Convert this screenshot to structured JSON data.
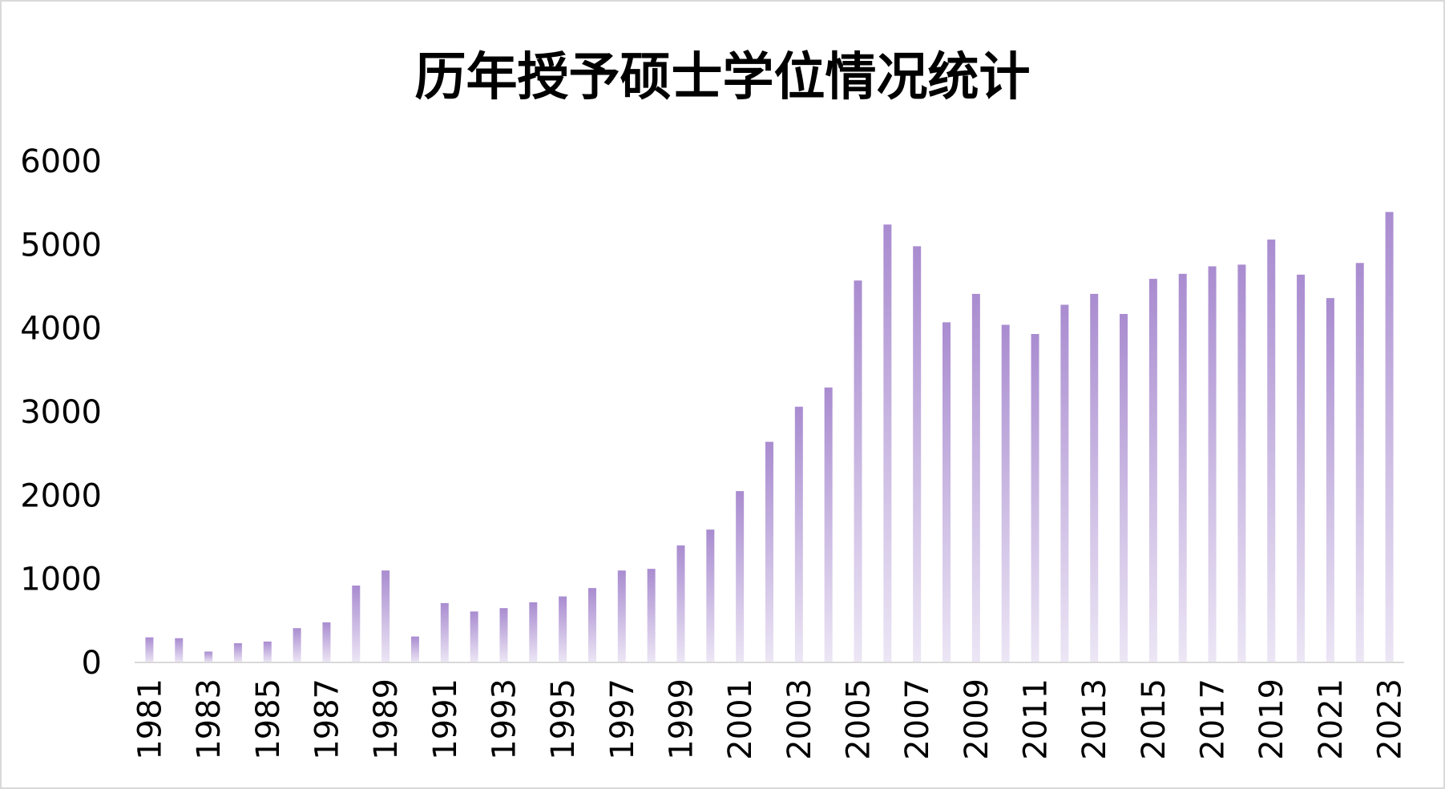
{
  "chart_data": {
    "type": "bar",
    "title": "历年授予硕士学位情况统计",
    "xlabel": "",
    "ylabel": "",
    "ylim": [
      0,
      6000
    ],
    "yticks": [
      "0",
      "1000",
      "2000",
      "3000",
      "4000",
      "5000",
      "6000"
    ],
    "xtick_labels": [
      "1981",
      "1983",
      "1985",
      "1987",
      "1989",
      "1991",
      "1993",
      "1995",
      "1997",
      "1999",
      "2001",
      "2003",
      "2005",
      "2007",
      "2009",
      "2011",
      "2013",
      "2015",
      "2017",
      "2019",
      "2021",
      "2023"
    ],
    "categories": [
      "1981",
      "1982",
      "1983",
      "1984",
      "1985",
      "1986",
      "1987",
      "1988",
      "1989",
      "1990",
      "1991",
      "1992",
      "1993",
      "1994",
      "1995",
      "1996",
      "1997",
      "1998",
      "1999",
      "2000",
      "2001",
      "2002",
      "2003",
      "2004",
      "2005",
      "2006",
      "2007",
      "2008",
      "2009",
      "2010",
      "2011",
      "2012",
      "2013",
      "2014",
      "2015",
      "2016",
      "2017",
      "2018",
      "2019",
      "2020",
      "2021",
      "2022",
      "2023"
    ],
    "values": [
      300,
      290,
      130,
      230,
      250,
      410,
      480,
      920,
      1100,
      310,
      710,
      610,
      650,
      720,
      790,
      890,
      1100,
      1120,
      1400,
      1590,
      2050,
      2640,
      3060,
      3290,
      4570,
      5240,
      4980,
      4070,
      4410,
      4040,
      3930,
      4280,
      4410,
      4170,
      4590,
      4650,
      4740,
      4760,
      5060,
      4640,
      4360,
      4780,
      5390
    ],
    "grid": false,
    "legend": "none"
  },
  "colors": {
    "bar_top": "#a98cd0",
    "bar_bottom": "#ece6f5",
    "axis": "#d9d9d9",
    "text": "#000000"
  }
}
